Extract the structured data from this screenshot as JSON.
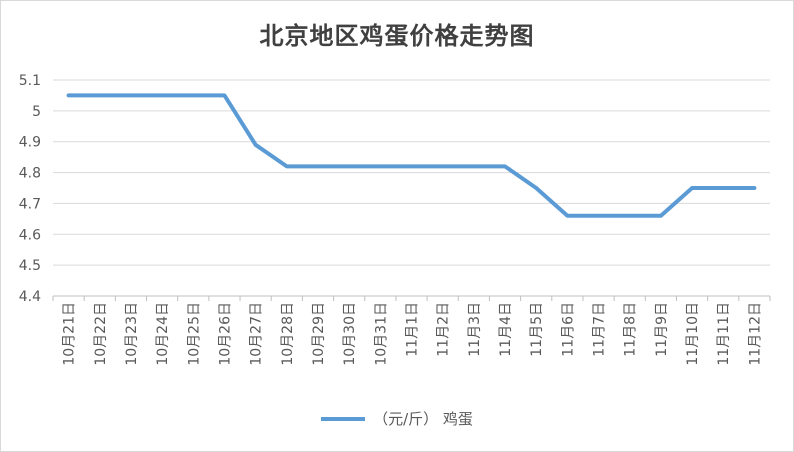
{
  "chart_data": {
    "type": "line",
    "title": "北京地区鸡蛋价格走势图",
    "categories": [
      "10月21日",
      "10月22日",
      "10月23日",
      "10月24日",
      "10月25日",
      "10月26日",
      "10月27日",
      "10月28日",
      "10月29日",
      "10月30日",
      "10月31日",
      "11月1日",
      "11月2日",
      "11月3日",
      "11月4日",
      "11月5日",
      "11月6日",
      "11月7日",
      "11月8日",
      "11月9日",
      "11月10日",
      "11月11日",
      "11月12日"
    ],
    "series": [
      {
        "name": "（元/斤） 鸡蛋",
        "color": "#5b9bd5",
        "values": [
          5.05,
          5.05,
          5.05,
          5.05,
          5.05,
          5.05,
          4.89,
          4.82,
          4.82,
          4.82,
          4.82,
          4.82,
          4.82,
          4.82,
          4.82,
          4.75,
          4.66,
          4.66,
          4.66,
          4.66,
          4.75,
          4.75,
          4.75
        ]
      }
    ],
    "yticks": [
      "4.4",
      "4.5",
      "4.6",
      "4.7",
      "4.8",
      "4.9",
      "5",
      "5.1"
    ],
    "ylim": [
      4.4,
      5.1
    ],
    "grid": true,
    "legend_position": "bottom"
  }
}
